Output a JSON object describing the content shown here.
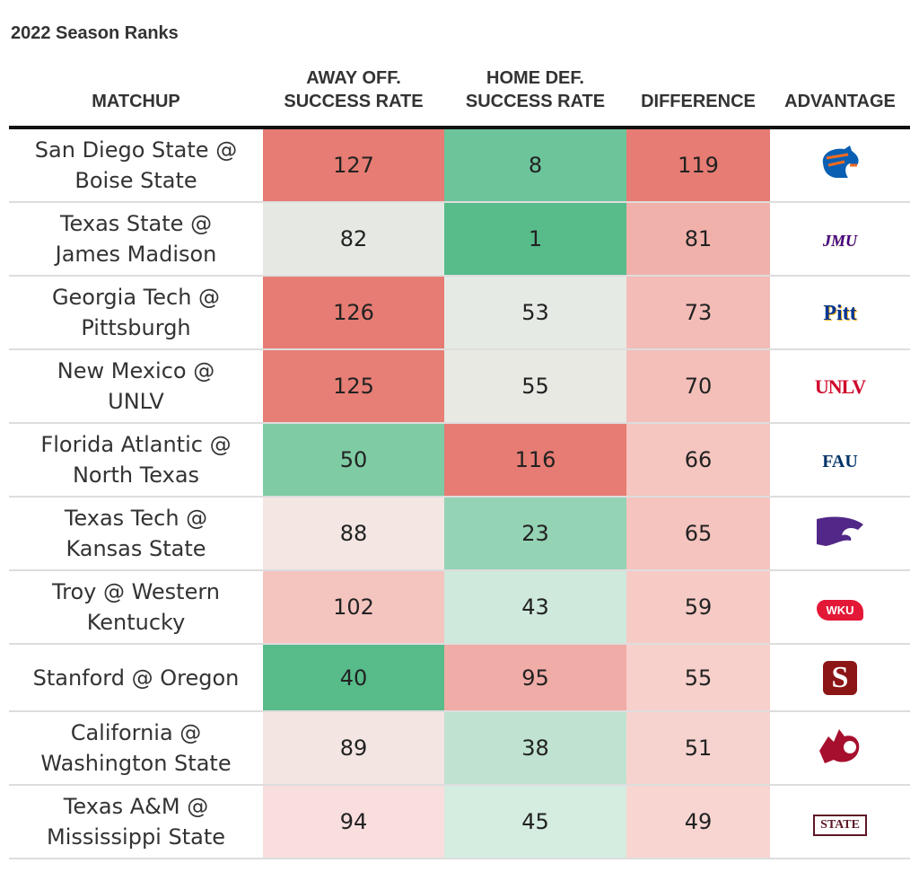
{
  "title": "2022 Season Ranks",
  "chart_data": {
    "type": "table",
    "title": "2022 Season Ranks",
    "columns": [
      "MATCHUP",
      "AWAY OFF. SUCCESS RATE",
      "HOME DEF. SUCCESS RATE",
      "DIFFERENCE",
      "ADVANTAGE"
    ],
    "header_lines": [
      [
        "MATCHUP"
      ],
      [
        "AWAY OFF.",
        "SUCCESS RATE"
      ],
      [
        "HOME DEF.",
        "SUCCESS RATE"
      ],
      [
        "DIFFERENCE"
      ],
      [
        "ADVANTAGE"
      ]
    ],
    "rows": [
      {
        "matchup": [
          "San Diego State @",
          "Boise State"
        ],
        "away_off": 127,
        "home_def": 8,
        "difference": 119,
        "advantage_logo": "boise-state-logo",
        "colors": [
          "#e67c73",
          "#6cc49b",
          "#e67c73"
        ]
      },
      {
        "matchup": [
          "Texas State @",
          "James Madison"
        ],
        "away_off": 82,
        "home_def": 1,
        "difference": 81,
        "advantage_logo": "jmu-logo",
        "logo_text": "JMU",
        "colors": [
          "#e6e9e3",
          "#57bb8a",
          "#f1b1ab"
        ]
      },
      {
        "matchup": [
          "Georgia Tech @",
          "Pittsburgh"
        ],
        "away_off": 126,
        "home_def": 53,
        "difference": 73,
        "advantage_logo": "pitt-logo",
        "logo_text": "Pitt",
        "colors": [
          "#e67c73",
          "#e6eae4",
          "#f4bcb6"
        ]
      },
      {
        "matchup": [
          "New Mexico @",
          "UNLV"
        ],
        "away_off": 125,
        "home_def": 55,
        "difference": 70,
        "advantage_logo": "unlv-logo",
        "logo_text": "UNLV",
        "colors": [
          "#e77f76",
          "#e8e9e3",
          "#f4bfb9"
        ]
      },
      {
        "matchup": [
          "Florida Atlantic @",
          "North Texas"
        ],
        "away_off": 50,
        "home_def": 116,
        "difference": 66,
        "advantage_logo": "fau-logo",
        "logo_text": "FAU",
        "colors": [
          "#7fcba4",
          "#e67c73",
          "#f5c5bf"
        ]
      },
      {
        "matchup": [
          "Texas Tech @",
          "Kansas State"
        ],
        "away_off": 88,
        "home_def": 23,
        "difference": 65,
        "advantage_logo": "kansas-state-logo",
        "colors": [
          "#f3e6e3",
          "#94d3b4",
          "#f5c4bf"
        ]
      },
      {
        "matchup": [
          "Troy @ Western",
          "Kentucky"
        ],
        "away_off": 102,
        "home_def": 43,
        "difference": 59,
        "advantage_logo": "wku-logo",
        "logo_text": "WKU",
        "colors": [
          "#f4c4bf",
          "#cfe9dc",
          "#f6cbc6"
        ]
      },
      {
        "matchup": [
          "Stanford @ Oregon"
        ],
        "away_off": 40,
        "home_def": 95,
        "difference": 55,
        "advantage_logo": "stanford-logo",
        "logo_text": "S",
        "colors": [
          "#57bb8a",
          "#f0aca6",
          "#f7d0cb"
        ]
      },
      {
        "matchup": [
          "California @",
          "Washington State"
        ],
        "away_off": 89,
        "home_def": 38,
        "difference": 51,
        "advantage_logo": "washington-state-logo",
        "colors": [
          "#f3e5e2",
          "#bfe3d0",
          "#f7d3cf"
        ]
      },
      {
        "matchup": [
          "Texas A&M @",
          "Mississippi State"
        ],
        "away_off": 94,
        "home_def": 45,
        "difference": 49,
        "advantage_logo": "mississippi-state-logo",
        "logo_text": "STATE",
        "colors": [
          "#f9dede",
          "#d5ece0",
          "#f8d5d1"
        ]
      }
    ]
  }
}
